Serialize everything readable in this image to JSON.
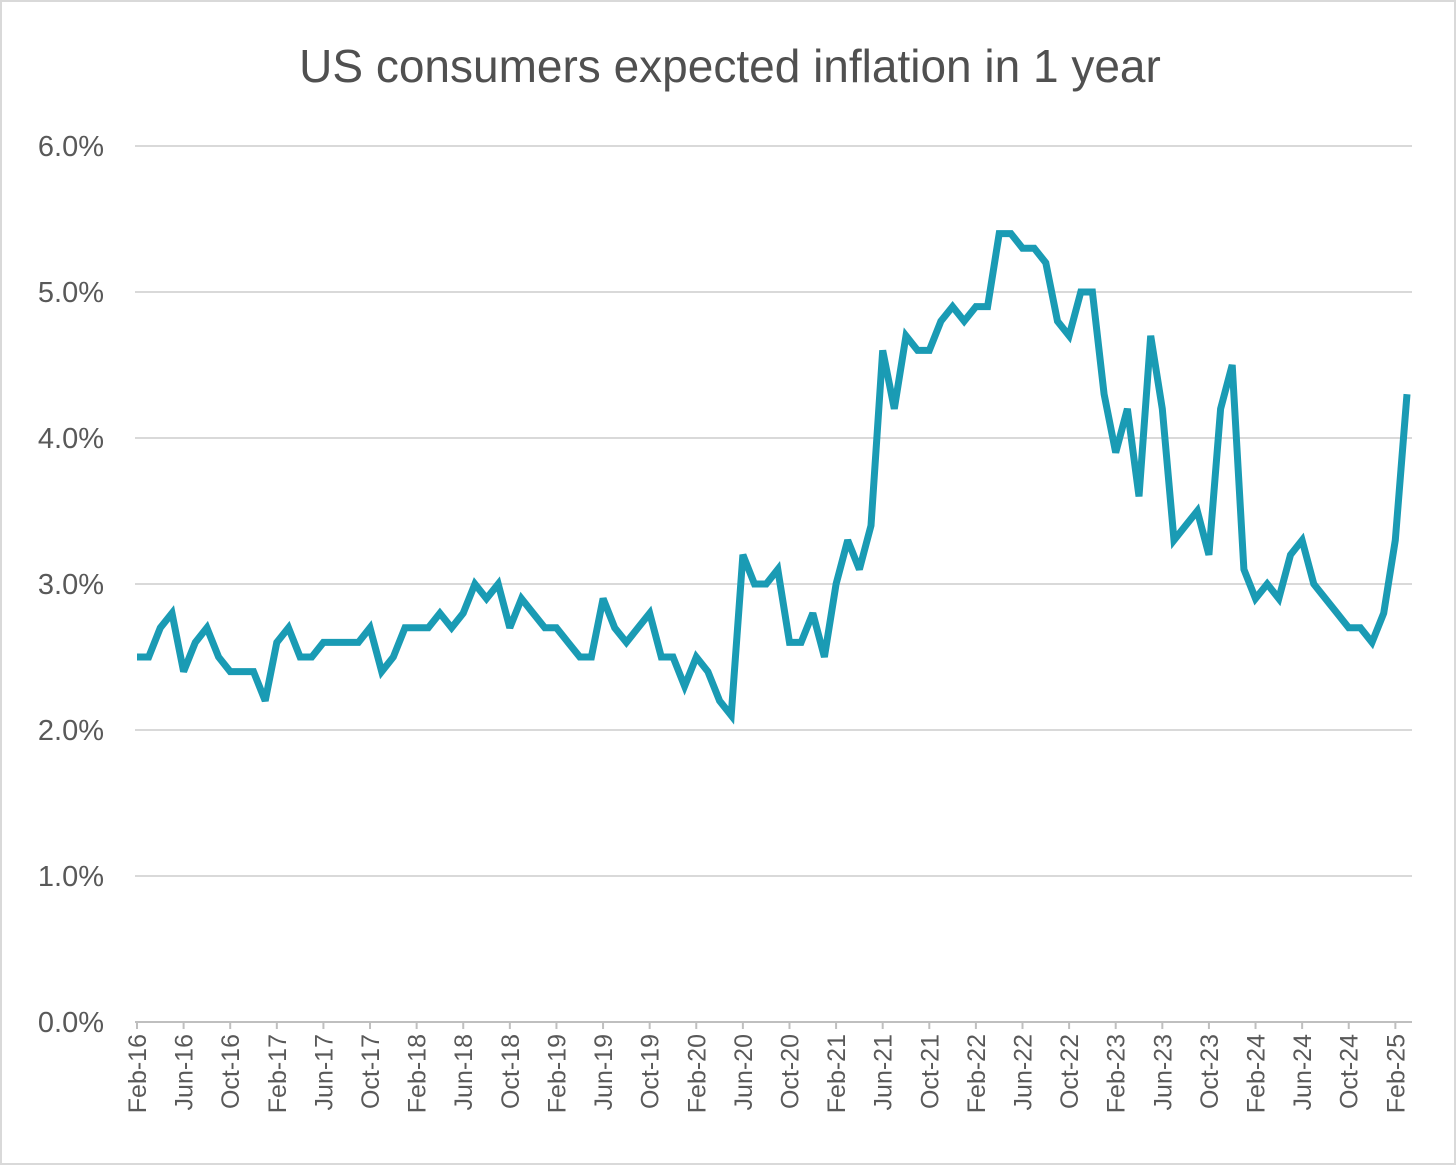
{
  "chart_data": {
    "type": "line",
    "title": "US consumers expected inflation in 1 year",
    "xlabel": "",
    "ylabel": "",
    "ylim": [
      0,
      6
    ],
    "y_ticks": [
      "0.0%",
      "1.0%",
      "2.0%",
      "3.0%",
      "4.0%",
      "5.0%",
      "6.0%"
    ],
    "grid": true,
    "legend": "none",
    "x_tick_labels": [
      "Feb-16",
      "Jun-16",
      "Oct-16",
      "Feb-17",
      "Jun-17",
      "Oct-17",
      "Feb-18",
      "Jun-18",
      "Oct-18",
      "Feb-19",
      "Jun-19",
      "Oct-19",
      "Feb-20",
      "Jun-20",
      "Oct-20",
      "Feb-21",
      "Jun-21",
      "Oct-21",
      "Feb-22",
      "Jun-22",
      "Oct-22",
      "Feb-23",
      "Jun-23",
      "Oct-23",
      "Feb-24",
      "Jun-24",
      "Oct-24",
      "Feb-25"
    ],
    "x_start": "Feb-16",
    "color": "#1a9bb4",
    "series": [
      {
        "values": [
          2.5,
          2.5,
          2.7,
          2.8,
          2.4,
          2.6,
          2.7,
          2.5,
          2.4,
          2.4,
          2.4,
          2.2,
          2.6,
          2.7,
          2.5,
          2.5,
          2.6,
          2.6,
          2.6,
          2.6,
          2.7,
          2.4,
          2.5,
          2.7,
          2.7,
          2.7,
          2.8,
          2.7,
          2.8,
          3.0,
          2.9,
          3.0,
          2.7,
          2.9,
          2.8,
          2.7,
          2.7,
          2.6,
          2.5,
          2.5,
          2.9,
          2.7,
          2.6,
          2.7,
          2.8,
          2.5,
          2.5,
          2.3,
          2.5,
          2.4,
          2.2,
          2.1,
          3.2,
          3.0,
          3.0,
          3.1,
          2.6,
          2.6,
          2.8,
          2.5,
          3.0,
          3.3,
          3.1,
          3.4,
          4.6,
          4.2,
          4.7,
          4.6,
          4.6,
          4.8,
          4.9,
          4.8,
          4.9,
          4.9,
          5.4,
          5.4,
          5.3,
          5.3,
          5.2,
          4.8,
          4.7,
          5.0,
          5.0,
          4.3,
          3.9,
          4.2,
          3.6,
          4.7,
          4.2,
          3.3,
          3.4,
          3.5,
          3.2,
          4.2,
          4.5,
          3.1,
          2.9,
          3.0,
          2.9,
          3.2,
          3.3,
          3.0,
          2.9,
          2.8,
          2.7,
          2.7,
          2.6,
          2.8,
          3.3,
          4.3
        ]
      }
    ]
  }
}
